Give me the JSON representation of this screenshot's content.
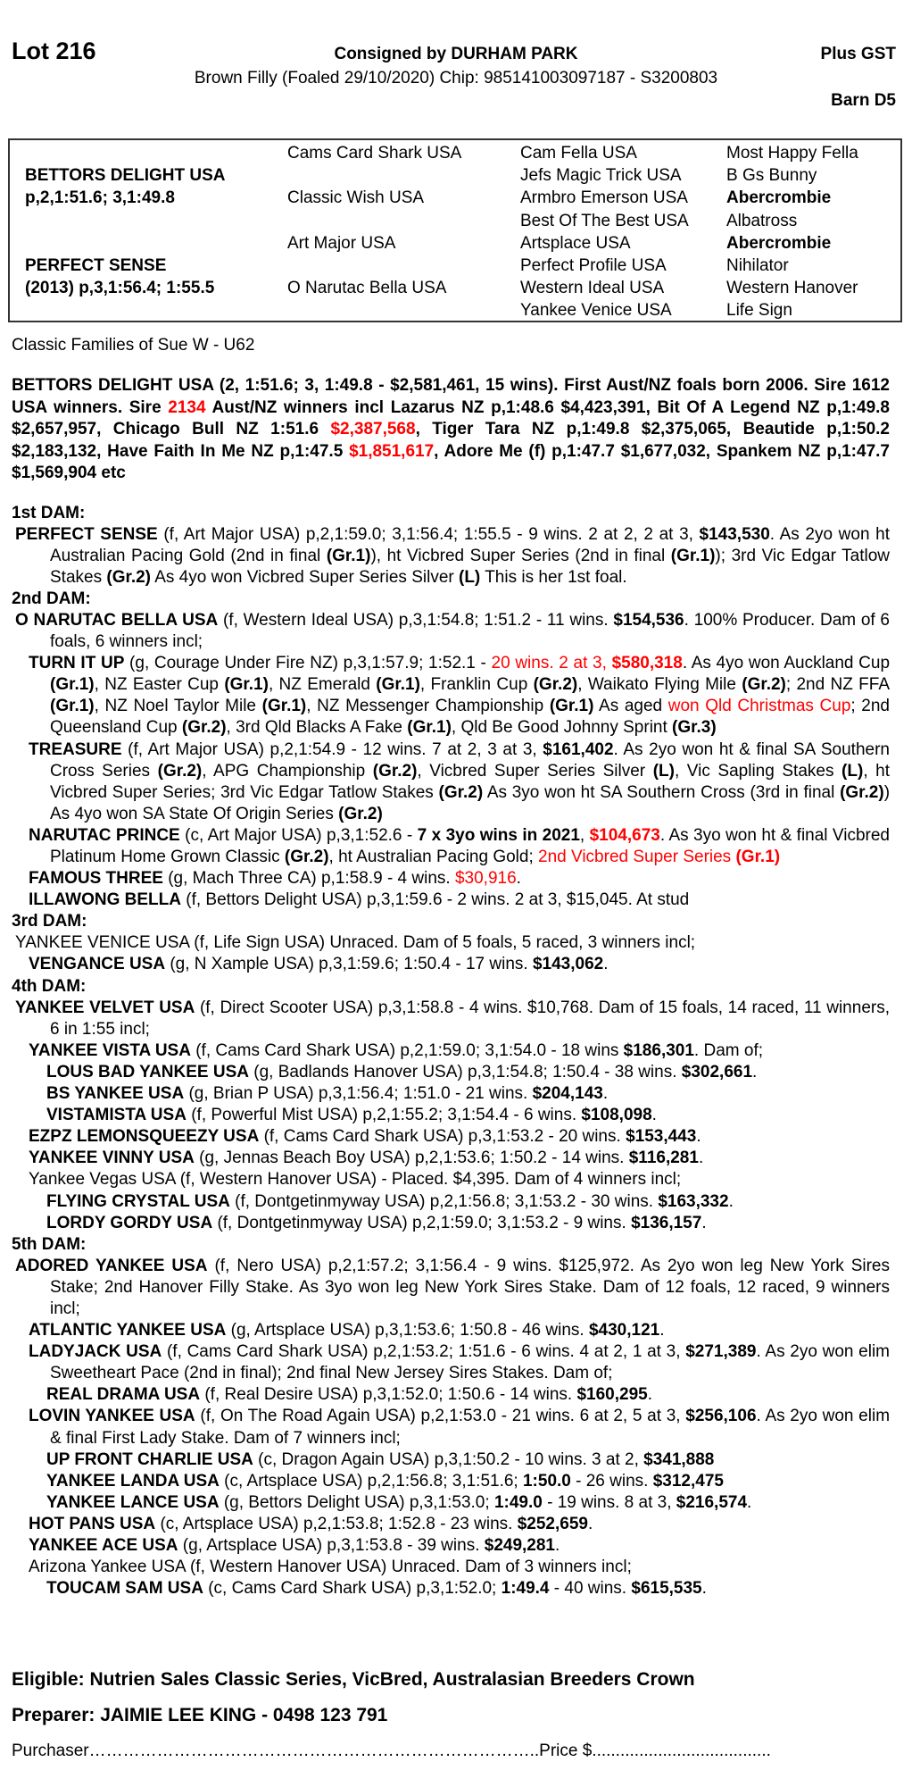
{
  "header": {
    "lot": "Lot 216",
    "consigned": "Consigned by DURHAM PARK",
    "description": "Brown Filly (Foaled 29/10/2020) Chip: 985141003097187 - S3200803",
    "gst": "Plus GST",
    "barn": "Barn D5"
  },
  "pedigree": {
    "col1": [
      {
        "row": 2,
        "text": "BETTORS DELIGHT USA",
        "bold": true
      },
      {
        "row": 3,
        "text": "p,2,1:51.6; 3,1:49.8",
        "bold": true
      },
      {
        "row": 6,
        "text": "PERFECT SENSE",
        "bold": true
      },
      {
        "row": 7,
        "text": "(2013) p,3,1:56.4; 1:55.5",
        "bold": true
      }
    ],
    "col2": [
      {
        "row": 1,
        "text": "Cams Card Shark USA"
      },
      {
        "row": 3,
        "text": "Classic Wish USA"
      },
      {
        "row": 5,
        "text": "Art Major USA"
      },
      {
        "row": 7,
        "text": "O Narutac Bella USA"
      }
    ],
    "col3": [
      {
        "row": 1,
        "text": "Cam Fella USA"
      },
      {
        "row": 2,
        "text": "Jefs Magic Trick USA"
      },
      {
        "row": 3,
        "text": "Armbro Emerson USA"
      },
      {
        "row": 4,
        "text": "Best Of The Best USA"
      },
      {
        "row": 5,
        "text": "Artsplace USA"
      },
      {
        "row": 6,
        "text": "Perfect Profile USA"
      },
      {
        "row": 7,
        "text": "Western Ideal USA"
      },
      {
        "row": 8,
        "text": "Yankee Venice USA"
      }
    ],
    "col4": [
      {
        "row": 1,
        "text": "Most Happy Fella"
      },
      {
        "row": 2,
        "text": "B Gs Bunny"
      },
      {
        "row": 3,
        "text": "Abercrombie",
        "bold": true
      },
      {
        "row": 4,
        "text": "Albatross"
      },
      {
        "row": 5,
        "text": "Abercrombie",
        "bold": true
      },
      {
        "row": 6,
        "text": "Nihilator"
      },
      {
        "row": 7,
        "text": "Western Hanover"
      },
      {
        "row": 8,
        "text": "Life Sign"
      }
    ]
  },
  "family": "Classic Families of Sue W - U62",
  "sire_para": [
    [
      "b",
      "BETTORS DELIGHT USA (2, 1:51.6; 3, 1:49.8 - $2,581,461, 15 wins). First Aust/NZ foals born 2006. Sire 1612 USA winners. Sire "
    ],
    [
      "rb",
      "2134"
    ],
    [
      "b",
      " Aust/NZ winners incl Lazarus NZ p,1:48.6 $4,423,391, Bit Of A Legend NZ p,1:49.8 $2,657,957, Chicago Bull NZ 1:51.6 "
    ],
    [
      "rb",
      "$2,387,568"
    ],
    [
      "b",
      ", Tiger Tara NZ p,1:49.8 $2,375,065, Beautide p,1:50.2 $2,183,132, Have Faith In Me NZ p,1:47.5 "
    ],
    [
      "rb",
      "$1,851,617"
    ],
    [
      "b",
      ", Adore Me (f) p,1:47.7 $1,677,032, Spankem NZ p,1:47.7 $1,569,904 etc"
    ]
  ],
  "entries": [
    {
      "level": "head",
      "runs": [
        [
          "b",
          "1st DAM:"
        ]
      ]
    },
    {
      "level": "l1",
      "runs": [
        [
          "b",
          "PERFECT SENSE"
        ],
        [
          "n",
          " (f, Art Major USA) p,2,1:59.0; 3,1:56.4; 1:55.5 - 9 wins. 2 at 2, 2 at 3, "
        ],
        [
          "b",
          "$143,530"
        ],
        [
          "n",
          ". As 2yo won ht Australian Pacing Gold (2nd in final "
        ],
        [
          "b",
          "(Gr.1)"
        ],
        [
          "n",
          "), ht Vicbred Super Series (2nd in final "
        ],
        [
          "b",
          "(Gr.1)"
        ],
        [
          "n",
          "); 3rd Vic Edgar Tatlow Stakes "
        ],
        [
          "b",
          "(Gr.2)"
        ],
        [
          "n",
          " As 4yo won Vicbred Super Series Silver "
        ],
        [
          "b",
          "(L)"
        ],
        [
          "n",
          " This is her 1st foal."
        ]
      ]
    },
    {
      "level": "head",
      "runs": [
        [
          "b",
          "2nd DAM:"
        ]
      ]
    },
    {
      "level": "l1",
      "runs": [
        [
          "b",
          "O NARUTAC BELLA USA"
        ],
        [
          "n",
          " (f, Western Ideal USA) p,3,1:54.8; 1:51.2 - 11 wins. "
        ],
        [
          "b",
          "$154,536"
        ],
        [
          "n",
          ". 100% Producer. Dam of 6 foals, 6 winners incl;"
        ]
      ]
    },
    {
      "level": "l2",
      "runs": [
        [
          "b",
          "TURN IT UP"
        ],
        [
          "n",
          " (g, Courage Under Fire NZ) p,3,1:57.9; 1:52.1 - "
        ],
        [
          "r",
          "20 wins. 2 at 3, "
        ],
        [
          "rb",
          "$580,318"
        ],
        [
          "n",
          ". As 4yo won Auckland Cup "
        ],
        [
          "b",
          "(Gr.1)"
        ],
        [
          "n",
          ", NZ Easter Cup "
        ],
        [
          "b",
          "(Gr.1)"
        ],
        [
          "n",
          ", NZ Emerald "
        ],
        [
          "b",
          "(Gr.1)"
        ],
        [
          "n",
          ", Franklin Cup "
        ],
        [
          "b",
          "(Gr.2)"
        ],
        [
          "n",
          ", Waikato Flying Mile "
        ],
        [
          "b",
          "(Gr.2)"
        ],
        [
          "n",
          "; 2nd NZ FFA "
        ],
        [
          "b",
          "(Gr.1)"
        ],
        [
          "n",
          ", NZ Noel Taylor Mile "
        ],
        [
          "b",
          "(Gr.1)"
        ],
        [
          "n",
          ", NZ Messenger Championship "
        ],
        [
          "b",
          "(Gr.1)"
        ],
        [
          "n",
          " As aged "
        ],
        [
          "r",
          "won Qld Christmas Cup"
        ],
        [
          "n",
          "; 2nd Queensland Cup "
        ],
        [
          "b",
          "(Gr.2)"
        ],
        [
          "n",
          ",  3rd Qld Blacks A Fake "
        ],
        [
          "b",
          "(Gr.1)"
        ],
        [
          "n",
          ", Qld Be Good Johnny Sprint "
        ],
        [
          "b",
          "(Gr.3)"
        ]
      ]
    },
    {
      "level": "l2",
      "runs": [
        [
          "b",
          "TREASURE"
        ],
        [
          "n",
          " (f, Art Major USA) p,2,1:54.9 - 12 wins. 7 at 2, 3 at 3, "
        ],
        [
          "b",
          "$161,402"
        ],
        [
          "n",
          ". As 2yo won ht & final SA Southern Cross Series "
        ],
        [
          "b",
          "(Gr.2)"
        ],
        [
          "n",
          ", APG Championship "
        ],
        [
          "b",
          "(Gr.2)"
        ],
        [
          "n",
          ", Vicbred Super Series Silver "
        ],
        [
          "b",
          "(L)"
        ],
        [
          "n",
          ", Vic Sapling Stakes "
        ],
        [
          "b",
          "(L)"
        ],
        [
          "n",
          ", ht Vicbred Super Series; 3rd Vic Edgar Tatlow Stakes "
        ],
        [
          "b",
          "(Gr.2)"
        ],
        [
          "n",
          " As 3yo won ht SA Southern Cross (3rd in final "
        ],
        [
          "b",
          "(Gr.2)"
        ],
        [
          "n",
          ") As 4yo won SA State Of Origin Series "
        ],
        [
          "b",
          "(Gr.2)"
        ]
      ]
    },
    {
      "level": "l2",
      "runs": [
        [
          "b",
          "NARUTAC PRINCE"
        ],
        [
          "n",
          " (c, Art Major USA) p,3,1:52.6 - "
        ],
        [
          "b",
          "7 x 3yo wins in 2021"
        ],
        [
          "n",
          ", "
        ],
        [
          "rb",
          "$104,673"
        ],
        [
          "n",
          ". As 3yo won ht & final Vicbred Platinum Home Grown Classic "
        ],
        [
          "b",
          "(Gr.2)"
        ],
        [
          "n",
          ", ht Australian Pacing Gold; "
        ],
        [
          "r",
          "2nd Vicbred Super Series "
        ],
        [
          "rb",
          "(Gr.1)"
        ]
      ]
    },
    {
      "level": "l2",
      "runs": [
        [
          "b",
          "FAMOUS THREE"
        ],
        [
          "n",
          " (g, Mach Three CA) p,1:58.9 - 4 wins. "
        ],
        [
          "r",
          "$30,916"
        ],
        [
          "n",
          "."
        ]
      ]
    },
    {
      "level": "l2",
      "runs": [
        [
          "b",
          "ILLAWONG BELLA"
        ],
        [
          "n",
          " (f, Bettors Delight USA) p,3,1:59.6 - 2 wins. 2 at 3, $15,045. At stud"
        ]
      ]
    },
    {
      "level": "head",
      "runs": [
        [
          "b",
          "3rd DAM:"
        ]
      ]
    },
    {
      "level": "l1",
      "runs": [
        [
          "n",
          "YANKEE VENICE USA (f, Life Sign USA) Unraced. Dam of 5 foals, 5 raced, 3 winners incl;"
        ]
      ]
    },
    {
      "level": "l2",
      "runs": [
        [
          "b",
          "VENGANCE USA"
        ],
        [
          "n",
          " (g, N Xample USA) p,3,1:59.6; 1:50.4 - 17 wins. "
        ],
        [
          "b",
          "$143,062"
        ],
        [
          "n",
          "."
        ]
      ]
    },
    {
      "level": "head",
      "runs": [
        [
          "b",
          "4th DAM:"
        ]
      ]
    },
    {
      "level": "l1",
      "runs": [
        [
          "b",
          "YANKEE VELVET USA"
        ],
        [
          "n",
          " (f, Direct Scooter USA) p,3,1:58.8 - 4 wins. $10,768. Dam of 15 foals, 14 raced, 11 winners, 6 in 1:55 incl;"
        ]
      ]
    },
    {
      "level": "l2",
      "runs": [
        [
          "b",
          "YANKEE VISTA USA"
        ],
        [
          "n",
          " (f, Cams Card Shark USA) p,2,1:59.0; 3,1:54.0 - 18 wins "
        ],
        [
          "b",
          "$186,301"
        ],
        [
          "n",
          ". Dam of;"
        ]
      ]
    },
    {
      "level": "l3",
      "runs": [
        [
          "b",
          "LOUS BAD YANKEE USA"
        ],
        [
          "n",
          " (g, Badlands Hanover USA) p,3,1:54.8; 1:50.4 - 38 wins. "
        ],
        [
          "b",
          "$302,661"
        ],
        [
          "n",
          "."
        ]
      ]
    },
    {
      "level": "l3",
      "runs": [
        [
          "b",
          "BS YANKEE USA"
        ],
        [
          "n",
          " (g, Brian P USA) p,3,1:56.4; 1:51.0 - 21 wins. "
        ],
        [
          "b",
          "$204,143"
        ],
        [
          "n",
          "."
        ]
      ]
    },
    {
      "level": "l3",
      "runs": [
        [
          "b",
          "VISTAMISTA USA"
        ],
        [
          "n",
          " (f, Powerful Mist USA) p,2,1:55.2; 3,1:54.4 - 6 wins. "
        ],
        [
          "b",
          "$108,098"
        ],
        [
          "n",
          "."
        ]
      ]
    },
    {
      "level": "l2",
      "runs": [
        [
          "b",
          "EZPZ LEMONSQUEEZY USA"
        ],
        [
          "n",
          " (f, Cams Card Shark USA) p,3,1:53.2 - 20 wins. "
        ],
        [
          "b",
          "$153,443"
        ],
        [
          "n",
          "."
        ]
      ]
    },
    {
      "level": "l2",
      "runs": [
        [
          "b",
          "YANKEE VINNY USA"
        ],
        [
          "n",
          " (g, Jennas Beach Boy USA) p,2,1:53.6; 1:50.2 - 14 wins. "
        ],
        [
          "b",
          "$116,281"
        ],
        [
          "n",
          "."
        ]
      ]
    },
    {
      "level": "l2",
      "runs": [
        [
          "n",
          "Yankee Vegas USA (f, Western Hanover USA) - Placed. $4,395. Dam of 4 winners incl;"
        ]
      ]
    },
    {
      "level": "l3",
      "runs": [
        [
          "b",
          "FLYING CRYSTAL USA"
        ],
        [
          "n",
          " (f, Dontgetinmyway USA) p,2,1:56.8; 3,1:53.2 - 30 wins. "
        ],
        [
          "b",
          "$163,332"
        ],
        [
          "n",
          "."
        ]
      ]
    },
    {
      "level": "l3",
      "runs": [
        [
          "b",
          "LORDY GORDY USA"
        ],
        [
          "n",
          " (f, Dontgetinmyway USA) p,2,1:59.0; 3,1:53.2 - 9 wins. "
        ],
        [
          "b",
          "$136,157"
        ],
        [
          "n",
          "."
        ]
      ]
    },
    {
      "level": "head",
      "runs": [
        [
          "b",
          "5th DAM:"
        ]
      ]
    },
    {
      "level": "l1",
      "runs": [
        [
          "b",
          "ADORED YANKEE USA"
        ],
        [
          "n",
          " (f, Nero USA) p,2,1:57.2; 3,1:56.4 - 9 wins. $125,972. As 2yo won leg New York Sires Stake; 2nd Hanover Filly Stake. As 3yo won leg New York Sires Stake. Dam of 12 foals, 12 raced, 9 winners incl;"
        ]
      ]
    },
    {
      "level": "l2",
      "runs": [
        [
          "b",
          "ATLANTIC YANKEE USA"
        ],
        [
          "n",
          " (g, Artsplace USA) p,3,1:53.6; 1:50.8 - 46 wins. "
        ],
        [
          "b",
          "$430,121"
        ],
        [
          "n",
          "."
        ]
      ]
    },
    {
      "level": "l2",
      "runs": [
        [
          "b",
          "LADYJACK USA"
        ],
        [
          "n",
          " (f, Cams Card Shark USA) p,2,1:53.2; 1:51.6 - 6 wins. 4 at 2, 1 at 3, "
        ],
        [
          "b",
          "$271,389"
        ],
        [
          "n",
          ". As 2yo won elim Sweetheart Pace (2nd in final); 2nd final New Jersey Sires Stakes. Dam of;"
        ]
      ]
    },
    {
      "level": "l3",
      "runs": [
        [
          "b",
          "REAL DRAMA USA"
        ],
        [
          "n",
          " (f, Real Desire USA) p,3,1:52.0; 1:50.6 - 14 wins. "
        ],
        [
          "b",
          "$160,295"
        ],
        [
          "n",
          "."
        ]
      ]
    },
    {
      "level": "l2",
      "runs": [
        [
          "b",
          "LOVIN YANKEE USA"
        ],
        [
          "n",
          " (f, On The Road Again USA) p,2,1:53.0 - 21 wins. 6 at 2, 5 at 3, "
        ],
        [
          "b",
          "$256,106"
        ],
        [
          "n",
          ". As 2yo won elim & final First Lady Stake. Dam of 7 winners incl;"
        ]
      ]
    },
    {
      "level": "l3",
      "runs": [
        [
          "b",
          "UP FRONT CHARLIE USA"
        ],
        [
          "n",
          " (c, Dragon Again USA) p,3,1:50.2 - 10 wins. 3 at 2, "
        ],
        [
          "b",
          "$341,888"
        ]
      ]
    },
    {
      "level": "l3",
      "runs": [
        [
          "b",
          "YANKEE LANDA USA"
        ],
        [
          "n",
          " (c, Artsplace USA) p,2,1:56.8; 3,1:51.6; "
        ],
        [
          "b",
          "1:50.0"
        ],
        [
          "n",
          " - 26 wins. "
        ],
        [
          "b",
          "$312,475"
        ]
      ]
    },
    {
      "level": "l3",
      "runs": [
        [
          "b",
          "YANKEE LANCE USA"
        ],
        [
          "n",
          " (g, Bettors Delight USA) p,3,1:53.0; "
        ],
        [
          "b",
          "1:49.0"
        ],
        [
          "n",
          " - 19 wins. 8 at 3, "
        ],
        [
          "b",
          "$216,574"
        ],
        [
          "n",
          "."
        ]
      ]
    },
    {
      "level": "l2",
      "runs": [
        [
          "b",
          "HOT PANS USA"
        ],
        [
          "n",
          " (c, Artsplace USA) p,2,1:53.8; 1:52.8 - 23 wins. "
        ],
        [
          "b",
          "$252,659"
        ],
        [
          "n",
          "."
        ]
      ]
    },
    {
      "level": "l2",
      "runs": [
        [
          "b",
          "YANKEE ACE USA"
        ],
        [
          "n",
          " (g, Artsplace USA) p,3,1:53.8 - 39 wins. "
        ],
        [
          "b",
          "$249,281"
        ],
        [
          "n",
          "."
        ]
      ]
    },
    {
      "level": "l2",
      "runs": [
        [
          "n",
          "Arizona Yankee USA (f, Western Hanover USA) Unraced. Dam of 3 winners incl;"
        ]
      ]
    },
    {
      "level": "l3",
      "runs": [
        [
          "b",
          "TOUCAM SAM USA"
        ],
        [
          "n",
          " (c, Cams Card Shark USA) p,3,1:52.0; "
        ],
        [
          "b",
          "1:49.4"
        ],
        [
          "n",
          " - 40 wins. "
        ],
        [
          "b",
          "$615,535"
        ],
        [
          "n",
          "."
        ]
      ]
    }
  ],
  "footer": {
    "eligible": "Eligible: Nutrien Sales Classic Series, VicBred, Australasian Breeders Crown",
    "preparer": "Preparer: JAIMIE LEE KING - 0498 123 791",
    "purchaser": "Purchaser……………………………………………………………………..Price $......................................"
  },
  "colors": {
    "highlight": "#ff0000",
    "text": "#000000"
  }
}
